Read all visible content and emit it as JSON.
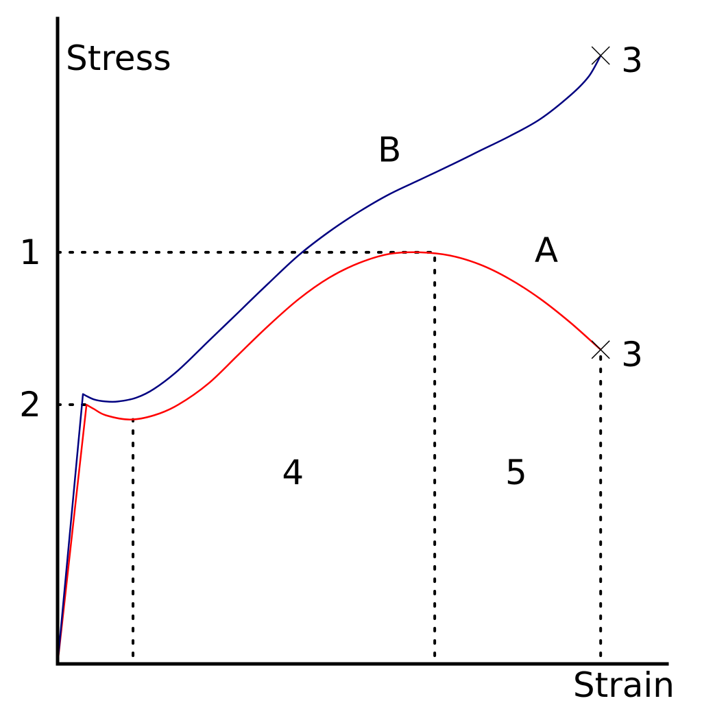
{
  "chart_data": {
    "type": "line",
    "xlabel": "Strain",
    "ylabel": "Stress",
    "colors": {
      "A": "#ff0000",
      "B": "#000080",
      "axes": "#000000",
      "guides": "#000000"
    },
    "series": [
      {
        "name": "A",
        "x": [
          0,
          0.048,
          0.06,
          0.08,
          0.12,
          0.16,
          0.2,
          0.25,
          0.3,
          0.35,
          0.4,
          0.45,
          0.5,
          0.55,
          0.6,
          0.65,
          0.7,
          0.75,
          0.8,
          0.85,
          0.9
        ],
        "y": [
          0,
          0.49,
          0.482,
          0.47,
          0.462,
          0.47,
          0.49,
          0.53,
          0.585,
          0.64,
          0.69,
          0.73,
          0.758,
          0.775,
          0.778,
          0.772,
          0.755,
          0.727,
          0.69,
          0.645,
          0.594
        ]
      },
      {
        "name": "B",
        "x": [
          0,
          0.042,
          0.06,
          0.08,
          0.1,
          0.13,
          0.16,
          0.2,
          0.25,
          0.3,
          0.35,
          0.4,
          0.45,
          0.5,
          0.55,
          0.6,
          0.65,
          0.7,
          0.75,
          0.8,
          0.85,
          0.88,
          0.9
        ],
        "y": [
          0,
          0.51,
          0.5,
          0.496,
          0.496,
          0.503,
          0.52,
          0.555,
          0.61,
          0.665,
          0.72,
          0.773,
          0.817,
          0.855,
          0.888,
          0.915,
          0.942,
          0.97,
          0.998,
          1.03,
          1.075,
          1.11,
          1.15
        ]
      }
    ],
    "reference_lines": [
      {
        "label": "1",
        "kind": "horizontal",
        "y": 0.778,
        "x_to": 0.625
      },
      {
        "label": "2",
        "kind": "horizontal",
        "y": 0.49,
        "x_to": 0.048
      }
    ],
    "vertical_guides": [
      {
        "x": 0.125,
        "y_to": 0.462
      },
      {
        "x": 0.625,
        "y_to": 0.778
      },
      {
        "x": 0.9,
        "y_to": 0.594
      }
    ],
    "fracture_points": [
      {
        "label": "3",
        "series": "B",
        "x": 0.9,
        "y": 1.15
      },
      {
        "label": "3",
        "series": "A",
        "x": 0.9,
        "y": 0.594
      }
    ],
    "region_labels": [
      {
        "label": "4",
        "x": 0.39,
        "y": 0.34
      },
      {
        "label": "5",
        "x": 0.76,
        "y": 0.34
      }
    ],
    "series_labels": [
      {
        "label": "B",
        "x": 0.55,
        "y": 0.95
      },
      {
        "label": "A",
        "x": 0.81,
        "y": 0.76
      }
    ],
    "xlim": [
      0,
      1.01
    ],
    "ylim": [
      0,
      1.22
    ],
    "grid": false
  }
}
